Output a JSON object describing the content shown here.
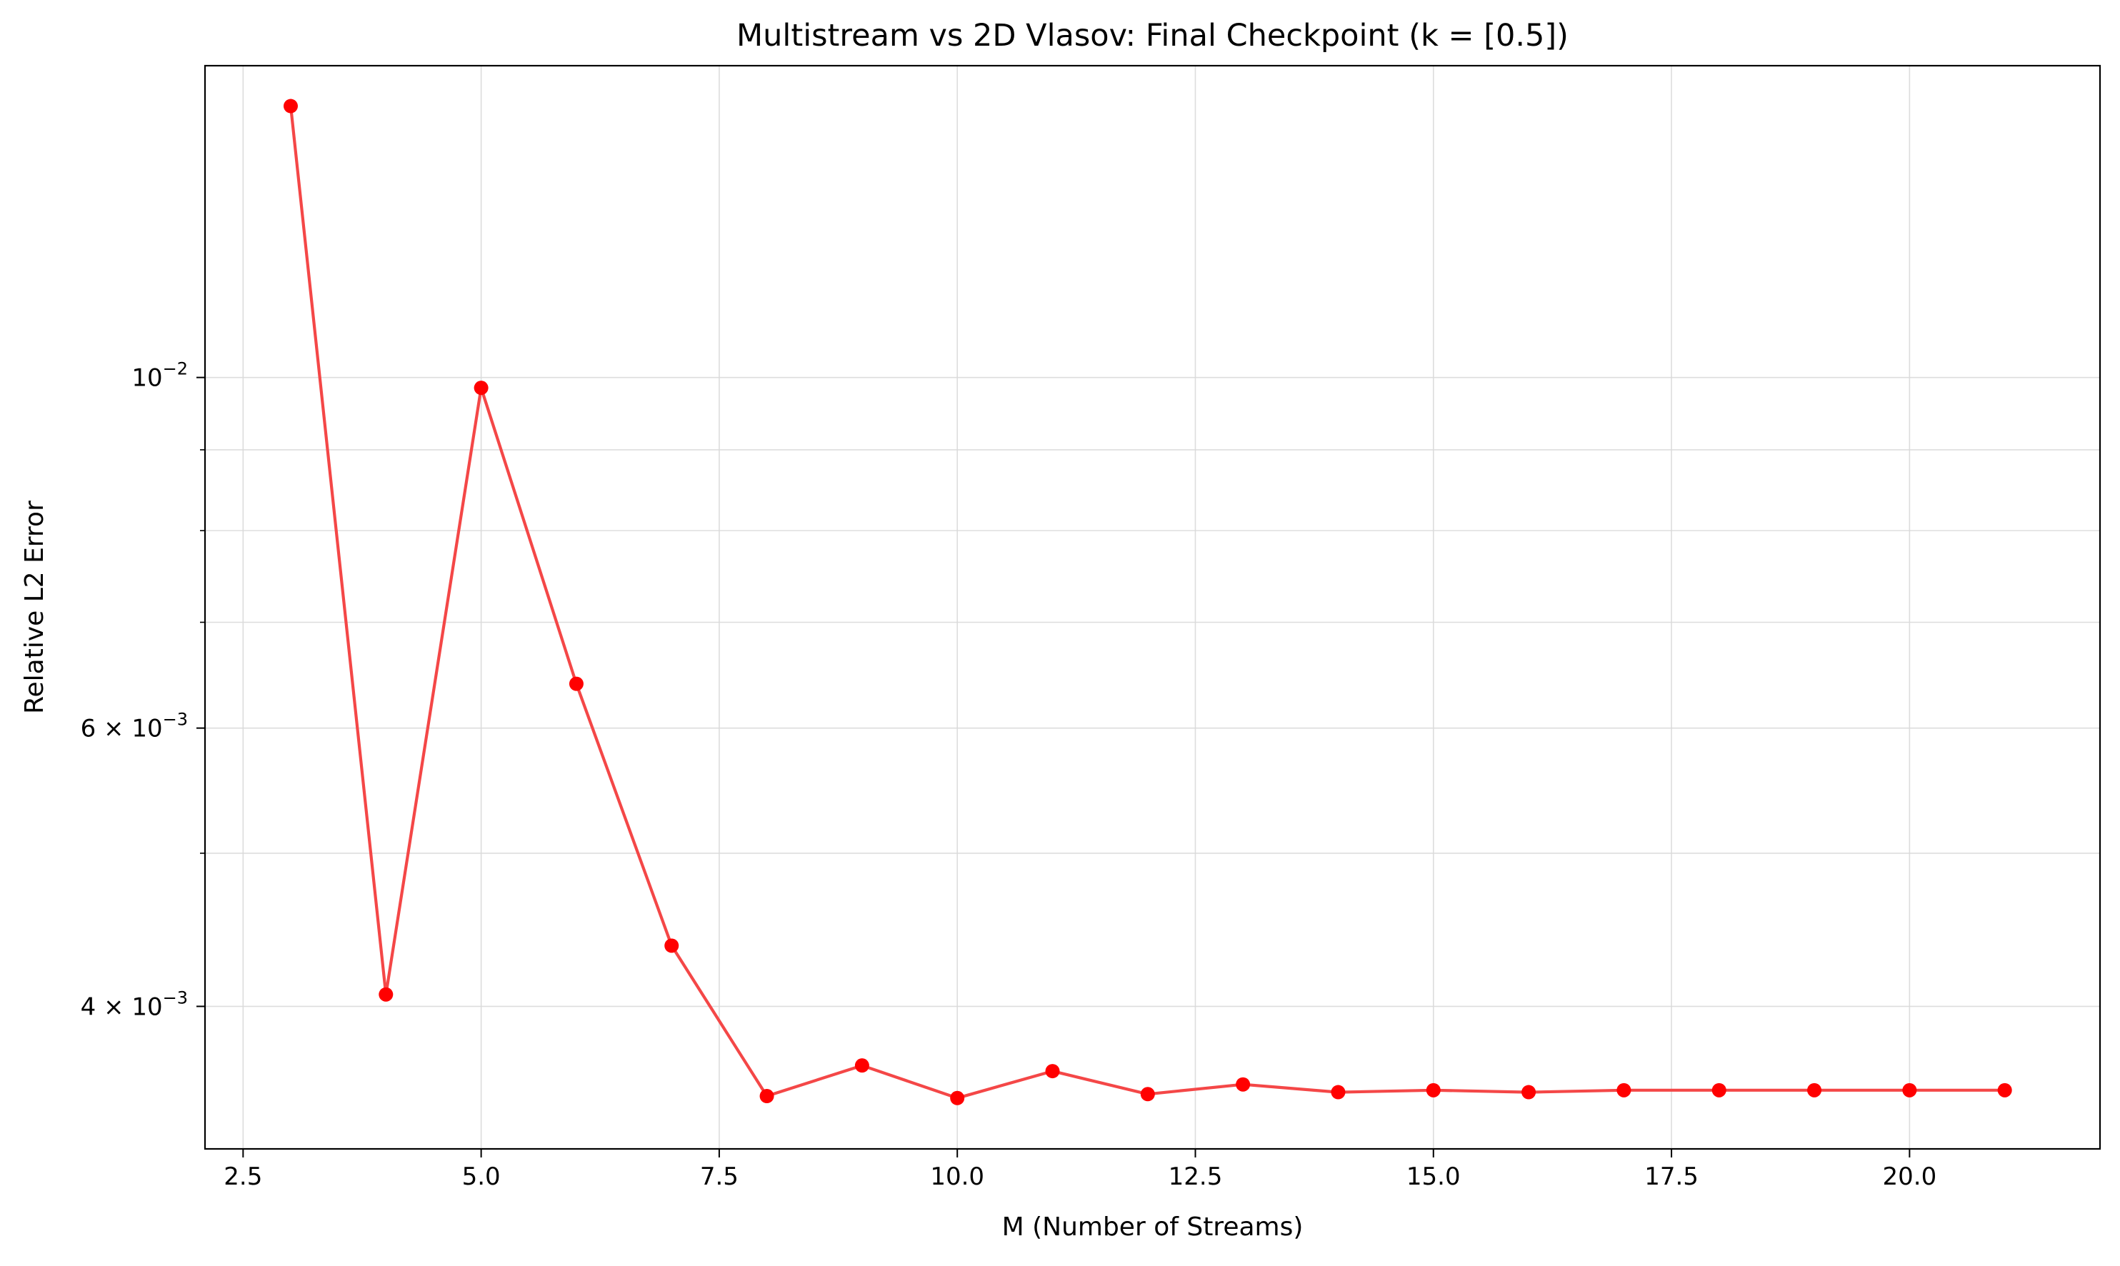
{
  "chart_data": {
    "type": "line",
    "title": "Multistream vs 2D Vlasov: Final Checkpoint (k = [0.5])",
    "xlabel": "M (Number of Streams)",
    "ylabel": "Relative L2 Error",
    "xscale": "linear",
    "yscale": "log",
    "xlim": [
      2.1,
      22.0
    ],
    "ylim": [
      0.00325,
      0.01575
    ],
    "grid": true,
    "legend": "none",
    "x_ticks": [
      "2.5",
      "5.0",
      "7.5",
      "10.0",
      "12.5",
      "15.0",
      "17.5",
      "20.0"
    ],
    "x_tick_values": [
      2.5,
      5.0,
      7.5,
      10.0,
      12.5,
      15.0,
      17.5,
      20.0
    ],
    "y_major_ticks": [
      {
        "value": 0.01,
        "base": "10",
        "exp": "−2"
      },
      {
        "value": 0.006,
        "base": "6 × 10",
        "exp": "−3"
      },
      {
        "value": 0.004,
        "base": "4 × 10",
        "exp": "−3"
      }
    ],
    "y_minor_tick_values": [
      0.005,
      0.007,
      0.008,
      0.009
    ],
    "series": [
      {
        "color": "#ff0000",
        "line_color": "#f44747",
        "x": [
          3,
          4,
          5,
          6,
          7,
          8,
          9,
          10,
          11,
          12,
          13,
          14,
          15,
          16,
          17,
          18,
          19,
          20,
          21
        ],
        "values": [
          0.01485,
          0.00407,
          0.00985,
          0.0064,
          0.00437,
          0.00351,
          0.00367,
          0.0035,
          0.00364,
          0.00352,
          0.00357,
          0.00353,
          0.00354,
          0.00353,
          0.00354,
          0.00354,
          0.00354,
          0.00354,
          0.00354
        ]
      }
    ]
  }
}
